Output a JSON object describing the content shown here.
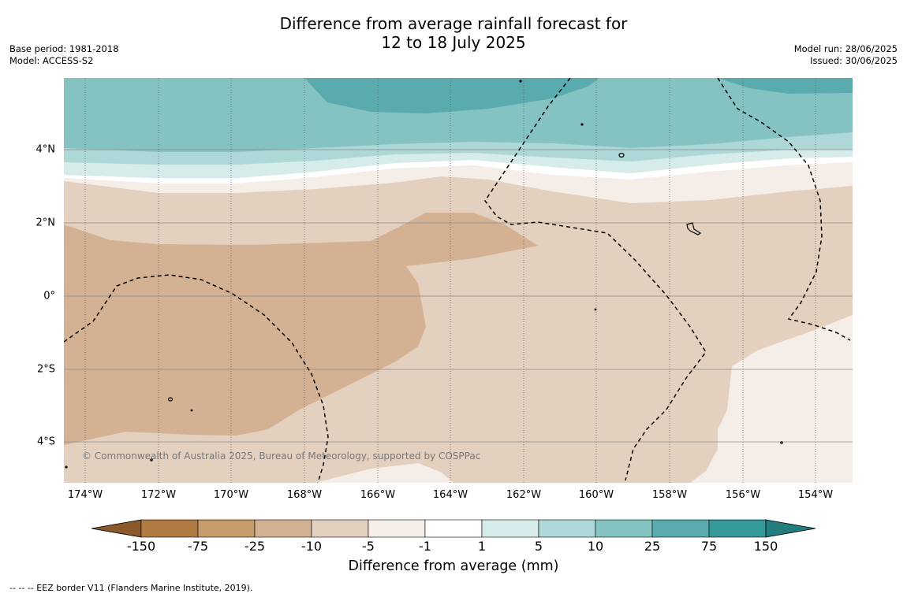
{
  "title": {
    "line1": "Difference from average rainfall forecast for",
    "line2": "12 to 18 July 2025"
  },
  "meta_left": {
    "line1": "Base period: 1981-2018",
    "line2": "Model: ACCESS-S2"
  },
  "meta_right": {
    "line1": "Model run: 28/06/2025",
    "line2": "Issued: 30/06/2025"
  },
  "map": {
    "lat_labels": [
      "4°N",
      "2°N",
      "0°",
      "2°S",
      "4°S"
    ],
    "lon_labels": [
      "174°W",
      "172°W",
      "170°W",
      "168°W",
      "166°W",
      "164°W",
      "162°W",
      "160°W",
      "158°W",
      "156°W",
      "154°W"
    ],
    "copyright": "© Commonwealth of Australia 2025, Bureau of Meteorology, supported by COSPPac"
  },
  "colorbar": {
    "title": "Difference from average (mm)",
    "labels": [
      "-150",
      "-75",
      "-25",
      "-10",
      "-5",
      "-1",
      "1",
      "5",
      "10",
      "25",
      "75",
      "150"
    ],
    "colors": {
      "lt_minus150": "#8b5a2b",
      "minus150_to_minus75": "#b07b43",
      "minus75_to_minus25": "#c69c6d",
      "minus25_to_minus10": "#d4b193",
      "minus10_to_minus5": "#e3d0bf",
      "minus5_to_minus1": "#f5ede8",
      "minus1_to_1": "#ffffff",
      "1_to_5": "#d6ecea",
      "5_to_10": "#add8d7",
      "10_to_25": "#84c3c1",
      "25_to_75": "#5aabad",
      "75_to_150": "#36999a",
      "gt_150": "#247d7d"
    }
  },
  "footnote": "--  --  -- EEZ border V11 (Flanders Marine Institute, 2019)."
}
